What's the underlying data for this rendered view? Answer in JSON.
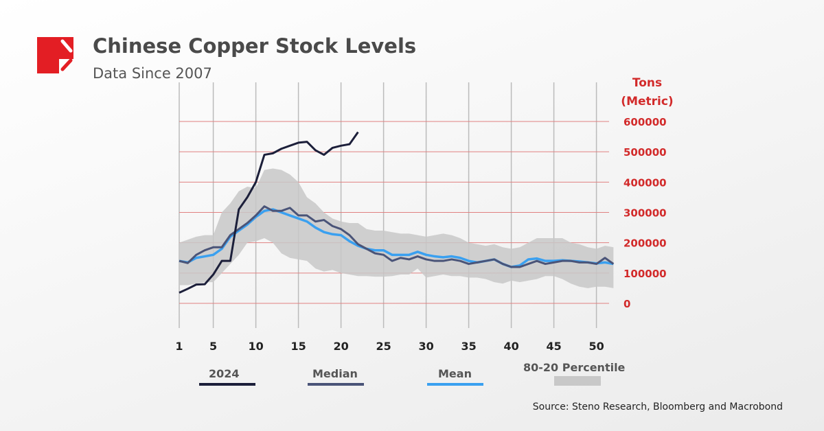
{
  "header": {
    "title": "Chinese Copper Stock Levels",
    "subtitle": "Data Since 2007"
  },
  "source": "Source: Steno Research, Bloomberg and Macrobond",
  "colors": {
    "y2024": "#1c1f3a",
    "median": "#4a5478",
    "mean": "#3aa0f0",
    "band": "#c8c8c8",
    "grid": "#e08080",
    "brand": "#e31e24"
  },
  "chart_data": {
    "type": "line",
    "ylabel": "Tons (Metric)",
    "ylabel_lines": [
      "Tons",
      "(Metric)"
    ],
    "ylim": [
      0,
      600000
    ],
    "yticks": [
      "0",
      "100000",
      "200000",
      "300000",
      "400000",
      "500000",
      "600000"
    ],
    "xticks": [
      "1",
      "5",
      "10",
      "15",
      "20",
      "25",
      "30",
      "35",
      "40",
      "45",
      "50"
    ],
    "xlim": [
      1,
      52
    ],
    "y_axis_side": "right",
    "grid": true,
    "legend": {
      "placement": "bottom",
      "items": [
        "2024",
        "Median",
        "Mean",
        "80-20 Percentile"
      ]
    },
    "series": [
      {
        "name": "2024",
        "values": [
          35000,
          48000,
          62000,
          63000,
          95000,
          140000,
          140000,
          310000,
          350000,
          400000,
          490000,
          495000,
          510000,
          520000,
          530000,
          533000,
          505000,
          490000,
          513000,
          520000,
          525000,
          565000
        ]
      },
      {
        "name": "Median",
        "values": [
          140000,
          133000,
          160000,
          175000,
          185000,
          185000,
          225000,
          245000,
          265000,
          290000,
          320000,
          305000,
          305000,
          315000,
          290000,
          290000,
          270000,
          275000,
          255000,
          245000,
          225000,
          195000,
          180000,
          165000,
          160000,
          140000,
          150000,
          145000,
          155000,
          145000,
          140000,
          140000,
          145000,
          140000,
          130000,
          135000,
          140000,
          145000,
          130000,
          120000,
          120000,
          130000,
          140000,
          130000,
          135000,
          140000,
          140000,
          135000,
          135000,
          130000,
          150000,
          130000
        ]
      },
      {
        "name": "Mean",
        "values": [
          140000,
          135000,
          150000,
          155000,
          160000,
          180000,
          220000,
          240000,
          260000,
          285000,
          305000,
          310000,
          300000,
          290000,
          280000,
          270000,
          250000,
          235000,
          228000,
          225000,
          205000,
          190000,
          180000,
          175000,
          175000,
          160000,
          160000,
          160000,
          170000,
          160000,
          155000,
          152000,
          155000,
          150000,
          140000,
          135000,
          140000,
          145000,
          130000,
          120000,
          125000,
          145000,
          148000,
          140000,
          140000,
          142000,
          140000,
          138000,
          135000,
          132000,
          135000,
          130000
        ]
      },
      {
        "name": "80-20 Percentile",
        "upper": [
          200000,
          210000,
          220000,
          225000,
          225000,
          300000,
          330000,
          370000,
          385000,
          380000,
          440000,
          445000,
          440000,
          425000,
          400000,
          350000,
          330000,
          300000,
          280000,
          270000,
          265000,
          265000,
          245000,
          240000,
          240000,
          235000,
          230000,
          230000,
          225000,
          220000,
          225000,
          230000,
          225000,
          215000,
          200000,
          195000,
          190000,
          195000,
          185000,
          180000,
          185000,
          200000,
          215000,
          215000,
          215000,
          215000,
          200000,
          195000,
          185000,
          180000,
          190000,
          185000
        ],
        "lower": [
          60000,
          60000,
          65000,
          70000,
          70000,
          100000,
          130000,
          160000,
          200000,
          205000,
          215000,
          200000,
          165000,
          150000,
          145000,
          140000,
          115000,
          105000,
          110000,
          100000,
          95000,
          90000,
          90000,
          88000,
          88000,
          90000,
          95000,
          95000,
          115000,
          85000,
          90000,
          95000,
          90000,
          90000,
          85000,
          85000,
          80000,
          70000,
          65000,
          75000,
          70000,
          75000,
          80000,
          90000,
          90000,
          80000,
          65000,
          55000,
          50000,
          55000,
          55000,
          50000
        ]
      }
    ]
  }
}
